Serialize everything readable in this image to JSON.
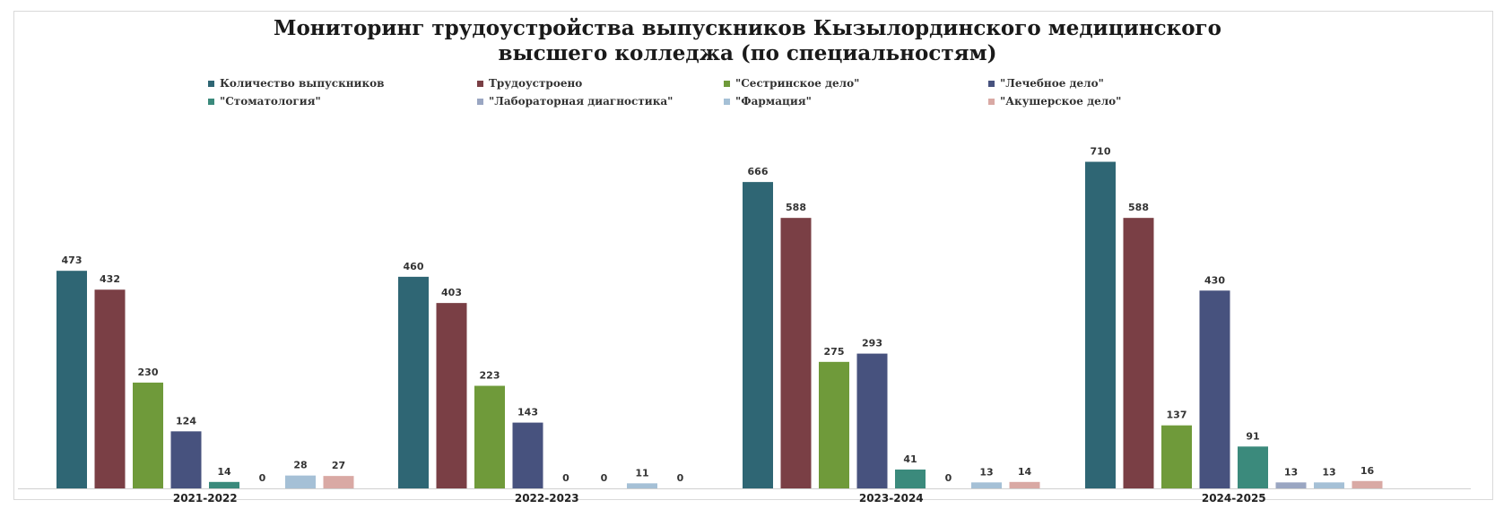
{
  "chart_data": {
    "type": "bar",
    "title_lines": [
      "Мониторинг трудоустройства выпускников Кызылординского медицинского",
      "высшего колледжа (по специальностям)"
    ],
    "xlabel": "",
    "ylabel": "",
    "categories": [
      "2021-2022",
      "2022-2023",
      "2023-2024",
      "2024-2025"
    ],
    "ylim": [
      0,
      750
    ],
    "grid": false,
    "legend_position": "top",
    "series": [
      {
        "name": "Количество выпускников",
        "color": "#2f6674",
        "values": [
          473,
          460,
          666,
          710
        ]
      },
      {
        "name": "Трудоустроено",
        "color": "#7a3f45",
        "values": [
          432,
          403,
          588,
          588
        ]
      },
      {
        "name": "\"Сестринское дело\"",
        "color": "#6f9a3a",
        "values": [
          230,
          223,
          275,
          137
        ]
      },
      {
        "name": "\"Лечебное дело\"",
        "color": "#47527e",
        "values": [
          124,
          143,
          293,
          430
        ]
      },
      {
        "name": "\"Стоматология\"",
        "color": "#3b8a7c",
        "values": [
          14,
          0,
          41,
          91
        ]
      },
      {
        "name": "\"Лабораторная диагностика\"",
        "color": "#9aa6c2",
        "values": [
          0,
          0,
          0,
          13
        ]
      },
      {
        "name": "\"Фармация\"",
        "color": "#a5c0d6",
        "values": [
          28,
          11,
          13,
          13
        ]
      },
      {
        "name": "\"Акушерское дело\"",
        "color": "#d9a9a4",
        "values": [
          27,
          0,
          14,
          16
        ]
      }
    ]
  }
}
